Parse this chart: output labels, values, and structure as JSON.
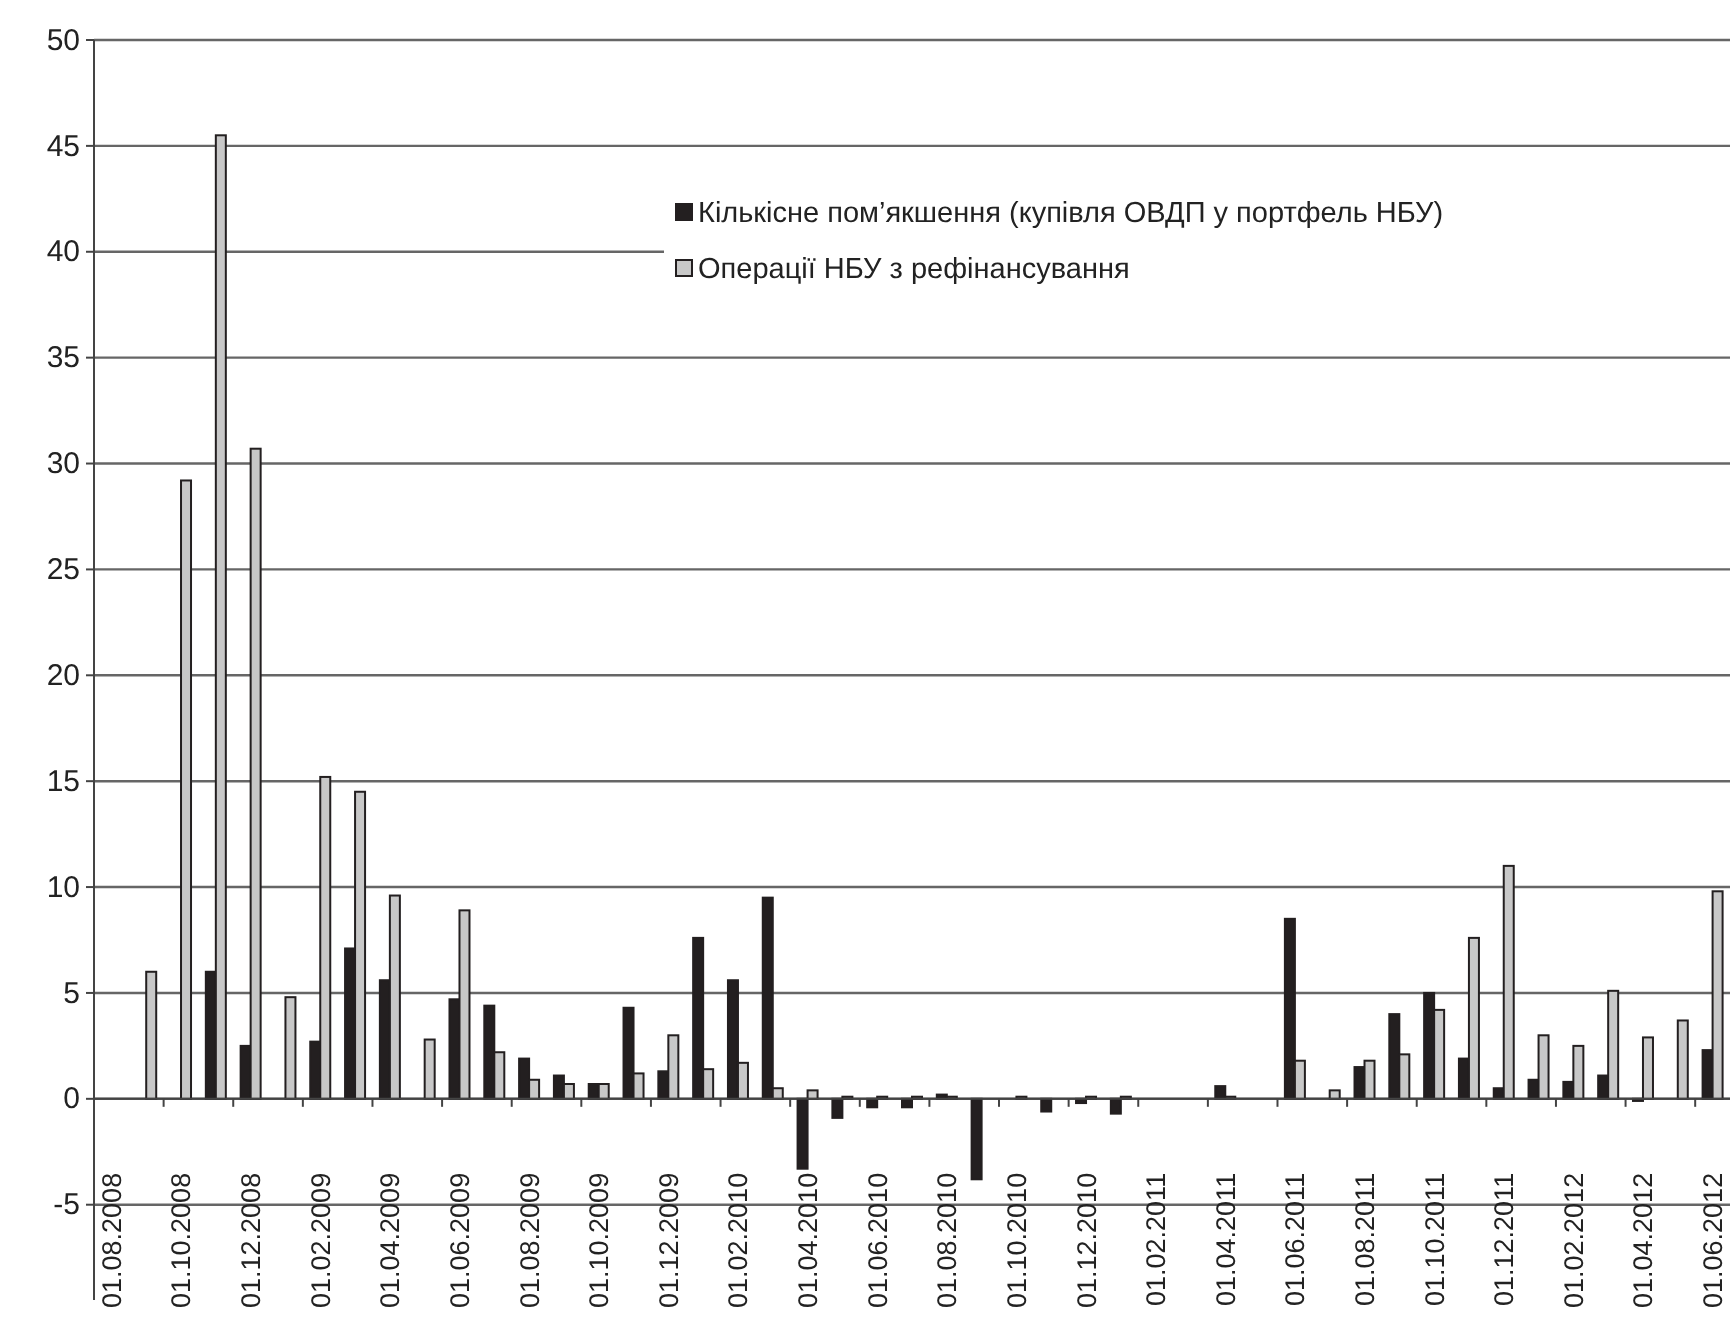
{
  "chart_data": {
    "type": "bar",
    "categories": [
      "01.08.2008",
      null,
      "01.10.2008",
      null,
      "01.12.2008",
      null,
      "01.02.2009",
      null,
      "01.04.2009",
      null,
      "01.06.2009",
      null,
      "01.08.2009",
      null,
      "01.10.2009",
      null,
      "01.12.2009",
      null,
      "01.02.2010",
      null,
      "01.04.2010",
      null,
      "01.06.2010",
      null,
      "01.08.2010",
      null,
      "01.10.2010",
      null,
      "01.12.2010",
      null,
      "01.02.2011",
      null,
      "01.04.2011",
      null,
      "01.06.2011",
      null,
      "01.08.2011",
      null,
      "01.10.2011",
      null,
      "01.12.2011",
      null,
      "01.02.2012",
      null,
      "01.04.2012",
      null,
      "01.06.2012"
    ],
    "series": [
      {
        "name": "Кількісне пом’якшення (купівля ОВДП у портфель НБУ)",
        "color": "#231f20",
        "values": [
          0,
          0,
          0,
          6.0,
          2.5,
          0,
          2.7,
          7.1,
          5.6,
          0,
          4.7,
          4.4,
          1.9,
          1.1,
          0.7,
          4.3,
          1.3,
          7.6,
          5.6,
          9.5,
          -3.3,
          -0.9,
          -0.4,
          -0.4,
          0.2,
          -3.8,
          0,
          -0.6,
          -0.2,
          -0.7,
          0,
          0,
          0.6,
          0,
          8.5,
          0,
          1.5,
          4.0,
          5.0,
          1.9,
          0.5,
          0.9,
          0.8,
          1.1,
          -0.1,
          0,
          2.3
        ]
      },
      {
        "name": "Операції НБУ з рефінансування",
        "color": "#c8c8c8",
        "values": [
          0,
          6.0,
          29.2,
          45.5,
          30.7,
          4.8,
          15.2,
          14.5,
          9.6,
          2.8,
          8.9,
          2.2,
          0.9,
          0.7,
          0.7,
          1.2,
          3.0,
          1.4,
          1.7,
          0.5,
          0.4,
          0.1,
          0.1,
          0.1,
          0.1,
          0,
          0.1,
          0,
          0.1,
          0.1,
          0,
          0,
          0.1,
          0,
          1.8,
          0.4,
          1.8,
          2.1,
          4.2,
          7.6,
          11.0,
          3.0,
          2.5,
          5.1,
          2.9,
          3.7,
          9.8
        ]
      }
    ],
    "ylim": [
      -9.5,
      50
    ],
    "yticks": [
      -5,
      0,
      5,
      10,
      15,
      20,
      25,
      30,
      35,
      40,
      45,
      50
    ],
    "grid": "y",
    "legend": "top right"
  }
}
